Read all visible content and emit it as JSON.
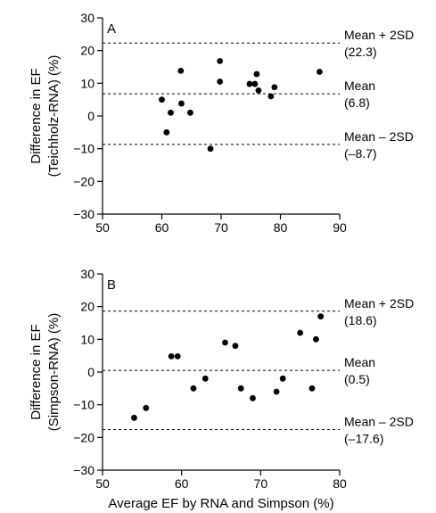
{
  "chart_data": [
    {
      "type": "scatter",
      "panel_label": "A",
      "ylabel_lines": [
        "Difference in EF",
        "(Teichholz-RNA) (%)"
      ],
      "xlabel": "",
      "xlim": [
        50,
        90
      ],
      "ylim": [
        -30,
        30
      ],
      "x_ticks": [
        50,
        60,
        70,
        80,
        90
      ],
      "y_ticks": [
        -30,
        -20,
        -10,
        0,
        10,
        20,
        30
      ],
      "points": [
        {
          "x": 60.0,
          "y": 5.0
        },
        {
          "x": 60.8,
          "y": -5.0
        },
        {
          "x": 61.5,
          "y": 1.0
        },
        {
          "x": 63.2,
          "y": 13.8
        },
        {
          "x": 63.3,
          "y": 3.8
        },
        {
          "x": 64.8,
          "y": 1.0
        },
        {
          "x": 68.2,
          "y": -10.0
        },
        {
          "x": 69.8,
          "y": 16.8
        },
        {
          "x": 69.8,
          "y": 10.5
        },
        {
          "x": 74.8,
          "y": 9.8
        },
        {
          "x": 75.7,
          "y": 9.8
        },
        {
          "x": 76.0,
          "y": 12.8
        },
        {
          "x": 76.3,
          "y": 7.8
        },
        {
          "x": 78.4,
          "y": 6.0
        },
        {
          "x": 79.0,
          "y": 8.8
        },
        {
          "x": 86.6,
          "y": 13.5
        }
      ],
      "reference_lines": [
        {
          "y": 22.3,
          "label": "Mean + 2SD",
          "value_label": "(22.3)"
        },
        {
          "y": 6.8,
          "label": "Mean",
          "value_label": "(6.8)"
        },
        {
          "y": -8.7,
          "label": "Mean – 2SD",
          "value_label": "(–8.7)"
        }
      ]
    },
    {
      "type": "scatter",
      "panel_label": "B",
      "ylabel_lines": [
        "Difference in EF",
        "(Simpson-RNA) (%)"
      ],
      "xlabel": "Average EF by RNA and Simpson (%)",
      "xlim": [
        50,
        80
      ],
      "ylim": [
        -30,
        30
      ],
      "x_ticks": [
        50,
        60,
        70,
        80
      ],
      "y_ticks": [
        -30,
        -20,
        -10,
        0,
        10,
        20,
        30
      ],
      "points": [
        {
          "x": 54.0,
          "y": -14.0
        },
        {
          "x": 55.5,
          "y": -11.0
        },
        {
          "x": 58.7,
          "y": 4.8
        },
        {
          "x": 59.5,
          "y": 4.8
        },
        {
          "x": 61.5,
          "y": -5.0
        },
        {
          "x": 63.0,
          "y": -2.0
        },
        {
          "x": 65.5,
          "y": 9.0
        },
        {
          "x": 66.8,
          "y": 8.0
        },
        {
          "x": 67.5,
          "y": -5.0
        },
        {
          "x": 69.0,
          "y": -8.0
        },
        {
          "x": 72.0,
          "y": -6.0
        },
        {
          "x": 72.8,
          "y": -2.0
        },
        {
          "x": 75.0,
          "y": 12.0
        },
        {
          "x": 76.5,
          "y": -5.0
        },
        {
          "x": 77.0,
          "y": 10.0
        },
        {
          "x": 77.6,
          "y": 17.0
        }
      ],
      "reference_lines": [
        {
          "y": 18.6,
          "label": "Mean + 2SD",
          "value_label": "(18.6)"
        },
        {
          "y": 0.5,
          "label": "Mean",
          "value_label": "(0.5)"
        },
        {
          "y": -17.6,
          "label": "Mean – 2SD",
          "value_label": "(–17.6)"
        }
      ]
    }
  ]
}
